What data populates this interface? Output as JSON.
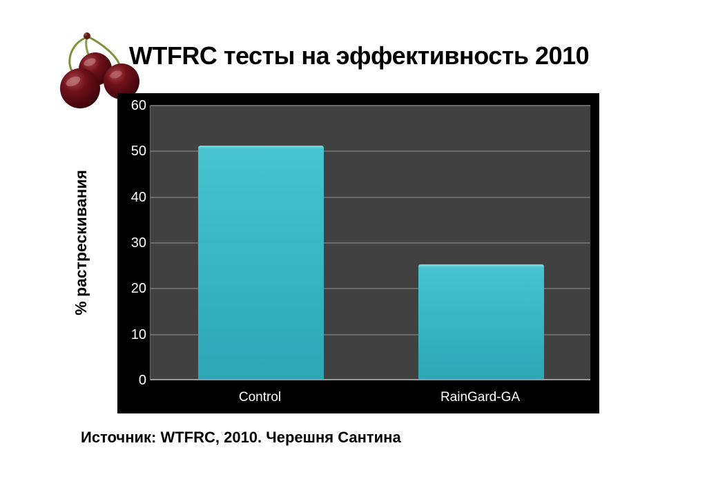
{
  "title": "WTFRC тесты на эффективность 2010",
  "source_note": "Источник: WTFRC, 2010. Черешня Сантина",
  "y_axis_title": "% растрескивания",
  "chart_data": {
    "type": "bar",
    "categories": [
      "Control",
      "RainGard-GA"
    ],
    "values": [
      51,
      25
    ],
    "title": "WTFRC тесты на эффективность 2010",
    "xlabel": "",
    "ylabel": "% растрескивания",
    "ylim": [
      0,
      60
    ],
    "yticks": [
      0,
      10,
      20,
      30,
      40,
      50,
      60
    ],
    "grid": true,
    "legend": false
  },
  "colors": {
    "page_bg": "#ffffff",
    "frame_bg": "#000000",
    "plot_bg": "#414141",
    "gridline": "#6b6b6b",
    "axis_line": "#9a9a9a",
    "tick_text": "#ffffff",
    "category_text": "#ffffff",
    "bar_highlight": "#7adde6",
    "bar_top": "#47c4d0",
    "bar_mid": "#3ab7c5",
    "bar_bottom": "#2da6b6",
    "title_text": "#000000"
  }
}
